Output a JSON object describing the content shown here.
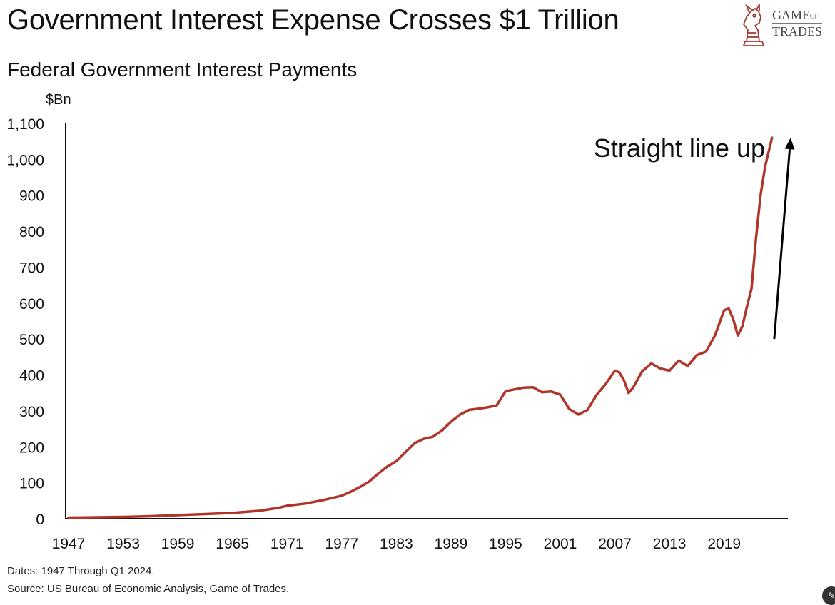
{
  "header": {
    "title": "Government Interest Expense Crosses $1 Trillion",
    "subtitle": "Federal Government Interest Payments"
  },
  "logo": {
    "line1": "GAME",
    "line1_small": "OF",
    "line2": "TRADES"
  },
  "footer": {
    "dates": "Dates: 1947 Through Q1 2024.",
    "source": "Source: US Bureau of Economic Analysis, Game of Trades."
  },
  "colors": {
    "series": "#b0362a",
    "axis": "#111111",
    "arrow": "#000000",
    "logo_red": "#a23a33"
  },
  "chart_data": {
    "type": "line",
    "ylabel": "$Bn",
    "ylim": [
      0,
      1100
    ],
    "yticks": [
      0,
      100,
      200,
      300,
      400,
      500,
      600,
      700,
      800,
      900,
      1000,
      1100
    ],
    "ytick_labels": [
      "0",
      "100",
      "200",
      "300",
      "400",
      "500",
      "600",
      "700",
      "800",
      "900",
      "1,000",
      "1,100"
    ],
    "xlim": [
      1947,
      2026
    ],
    "xticks": [
      1947,
      1953,
      1959,
      1965,
      1971,
      1977,
      1983,
      1989,
      1995,
      2001,
      2007,
      2013,
      2019
    ],
    "xtick_labels": [
      "1947",
      "1953",
      "1959",
      "1965",
      "1971",
      "1977",
      "1983",
      "1989",
      "1995",
      "2001",
      "2007",
      "2013",
      "2019"
    ],
    "grid": false,
    "legend": "none",
    "annotation": {
      "text": "Straight line up",
      "arrow_from": [
        2024.5,
        500
      ],
      "arrow_to": [
        2026.3,
        1060
      ]
    },
    "series": [
      {
        "x": [
          1947,
          1950,
          1953,
          1956,
          1959,
          1962,
          1965,
          1968,
          1970,
          1971,
          1973,
          1975,
          1977,
          1978,
          1979,
          1980,
          1981,
          1982,
          1983,
          1984,
          1985,
          1986,
          1987,
          1988,
          1989,
          1990,
          1991,
          1992,
          1993,
          1994,
          1995,
          1996,
          1997,
          1998,
          1999,
          2000,
          2001,
          2002,
          2003,
          2004,
          2005,
          2006,
          2007,
          2007.5,
          2008,
          2008.5,
          2009,
          2010,
          2011,
          2012,
          2013,
          2014,
          2015,
          2016,
          2017,
          2018,
          2019,
          2019.5,
          2020,
          2020.5,
          2021,
          2021.5,
          2022,
          2022.5,
          2023,
          2023.5,
          2024.25
        ],
        "y": [
          3,
          4,
          5,
          7,
          10,
          13,
          16,
          22,
          30,
          36,
          42,
          52,
          64,
          75,
          88,
          103,
          125,
          145,
          160,
          185,
          210,
          222,
          228,
          245,
          270,
          290,
          303,
          306,
          310,
          315,
          355,
          360,
          365,
          366,
          352,
          354,
          345,
          305,
          290,
          303,
          345,
          375,
          412,
          407,
          385,
          350,
          365,
          410,
          432,
          418,
          412,
          440,
          425,
          455,
          465,
          510,
          580,
          585,
          555,
          510,
          535,
          590,
          640,
          780,
          900,
          980,
          1060
        ]
      }
    ]
  }
}
